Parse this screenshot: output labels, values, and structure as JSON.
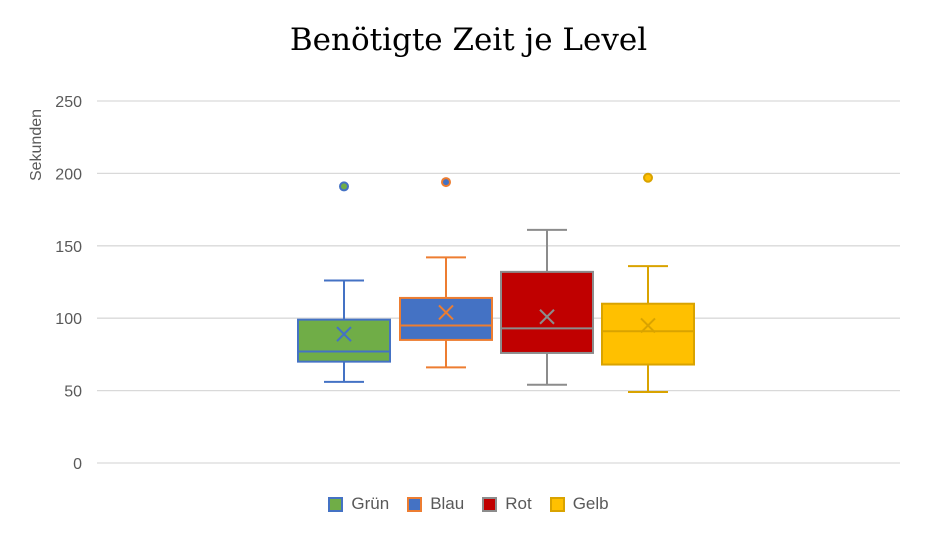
{
  "chart_data": {
    "type": "boxplot",
    "title": "Benötigte Zeit je Level",
    "ylabel": "Sekunden",
    "xlabel": "",
    "ylim": [
      0,
      250
    ],
    "yticks": [
      "0",
      "50",
      "100",
      "150",
      "200",
      "250"
    ],
    "grid": true,
    "legend_placement": "bottom",
    "series": [
      {
        "name": "Grün",
        "fill": "#70AD47",
        "stroke": "#4472C4",
        "min": 56,
        "q1": 70,
        "median": 77,
        "q3": 99,
        "max": 126,
        "mean": 89,
        "outliers": [
          191
        ]
      },
      {
        "name": "Blau",
        "fill": "#4472C4",
        "stroke": "#ED7D31",
        "min": 66,
        "q1": 85,
        "median": 95,
        "q3": 114,
        "max": 142,
        "mean": 104,
        "outliers": [
          194
        ]
      },
      {
        "name": "Rot",
        "fill": "#C00000",
        "stroke": "#8C8C8C",
        "min": 54,
        "q1": 76,
        "median": 93,
        "q3": 132,
        "max": 161,
        "mean": 101,
        "outliers": []
      },
      {
        "name": "Gelb",
        "fill": "#FFC000",
        "stroke": "#D9A300",
        "min": 49,
        "q1": 68,
        "median": 91,
        "q3": 110,
        "max": 136,
        "mean": 95,
        "outliers": [
          197
        ]
      }
    ]
  }
}
